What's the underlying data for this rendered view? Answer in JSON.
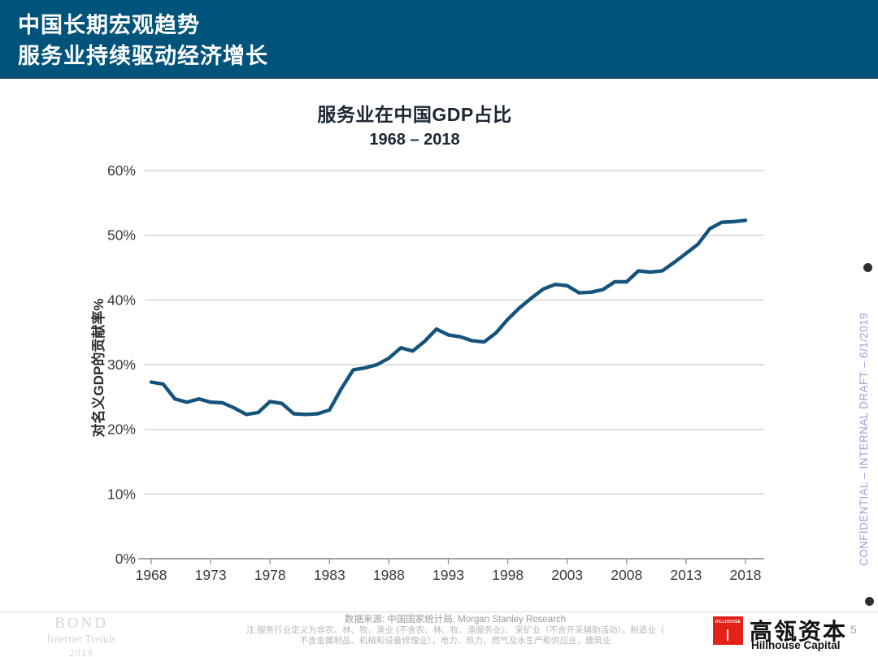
{
  "header": {
    "title_line1": "中国长期宏观趋势",
    "title_line2": "服务业持续驱动经济增长"
  },
  "chart": {
    "title": "服务业在中国GDP占比",
    "subtitle": "1968 – 2018",
    "y_axis_label": "对名义GDP的贡献率%"
  },
  "chart_data": {
    "type": "line",
    "title": "服务业在中国GDP占比",
    "subtitle": "1968 – 2018",
    "xlabel": "",
    "ylabel": "对名义GDP的贡献率%",
    "x": [
      1968,
      1969,
      1970,
      1971,
      1972,
      1973,
      1974,
      1975,
      1976,
      1977,
      1978,
      1979,
      1980,
      1981,
      1982,
      1983,
      1984,
      1985,
      1986,
      1987,
      1988,
      1989,
      1990,
      1991,
      1992,
      1993,
      1994,
      1995,
      1996,
      1997,
      1998,
      1999,
      2000,
      2001,
      2002,
      2003,
      2004,
      2005,
      2006,
      2007,
      2008,
      2009,
      2010,
      2011,
      2012,
      2013,
      2014,
      2015,
      2016,
      2017,
      2018
    ],
    "values": [
      27.3,
      27.0,
      24.7,
      24.2,
      24.7,
      24.2,
      24.1,
      23.3,
      22.3,
      22.6,
      24.3,
      24.0,
      22.4,
      22.3,
      22.4,
      23.0,
      26.3,
      29.2,
      29.5,
      30.0,
      31.0,
      32.6,
      32.1,
      33.6,
      35.5,
      34.6,
      34.3,
      33.7,
      33.5,
      34.9,
      37.0,
      38.8,
      40.3,
      41.7,
      42.4,
      42.2,
      41.1,
      41.2,
      41.6,
      42.8,
      42.8,
      44.5,
      44.3,
      44.5,
      45.8,
      47.2,
      48.6,
      51.0,
      52.0,
      52.1,
      52.3
    ],
    "xlim": [
      1968,
      2018
    ],
    "ylim": [
      0,
      60
    ],
    "x_tick_labels": [
      "1968",
      "1973",
      "1978",
      "1983",
      "1988",
      "1993",
      "1998",
      "2003",
      "2008",
      "2013",
      "2018"
    ],
    "y_ticks": [
      0,
      10,
      20,
      30,
      40,
      50,
      60
    ],
    "y_tick_labels": [
      "0%",
      "10%",
      "20%",
      "30%",
      "40%",
      "50%",
      "60%"
    ],
    "grid": "horizontal",
    "legend": "none",
    "line_color": "#14537b"
  },
  "right_margin": {
    "watermark": "CONFIDENTIAL – INTERNAL DRAFT – 6/1/2019"
  },
  "footer": {
    "source_line": "数据来源: 中国国家统计局, Morgan Stanley Research",
    "note_line1": "注:服务行业定义为非农、林、牧、渔业 (不含农、林、牧、渔服务业)、 采矿业（不含开采辅助活动），制造业（",
    "note_line2": "不含金属制品、机械和设备修理业），电力、热力、燃气及水生产和供应业，建筑业",
    "bond_logo": {
      "line1": "BOND",
      "line2": "Internet Trends",
      "line3": "2019"
    },
    "hillhouse_logo": {
      "square_text": "HILLHOUSE",
      "name_cn": "高瓴资本",
      "name_en": "Hillhouse Capital"
    },
    "page_number": "5"
  },
  "colors": {
    "header_bg": "#00537a",
    "line": "#14537b",
    "gridline": "#c9c9c9",
    "axis": "#8a8a8a",
    "confidential_text": "#a89bd6",
    "hillhouse_red": "#e32119"
  }
}
